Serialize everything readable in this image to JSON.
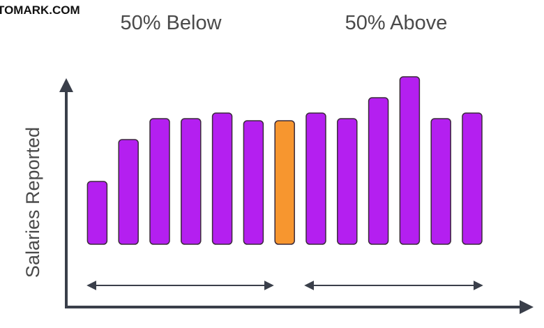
{
  "chart_data": {
    "type": "bar",
    "watermark": "TOMARK.COM",
    "ylabel": "Salaries Reported",
    "annotations": [
      "50% Below",
      "50% Above"
    ],
    "values": [
      90,
      150,
      180,
      180,
      188,
      177,
      177,
      188,
      180,
      210,
      240,
      180,
      188
    ],
    "colors": [
      "#b41ff0",
      "#b41ff0",
      "#b41ff0",
      "#b41ff0",
      "#b41ff0",
      "#b41ff0",
      "#f7962f",
      "#b41ff0",
      "#b41ff0",
      "#b41ff0",
      "#b41ff0",
      "#b41ff0",
      "#b41ff0"
    ],
    "ylim": [
      0,
      240
    ]
  }
}
